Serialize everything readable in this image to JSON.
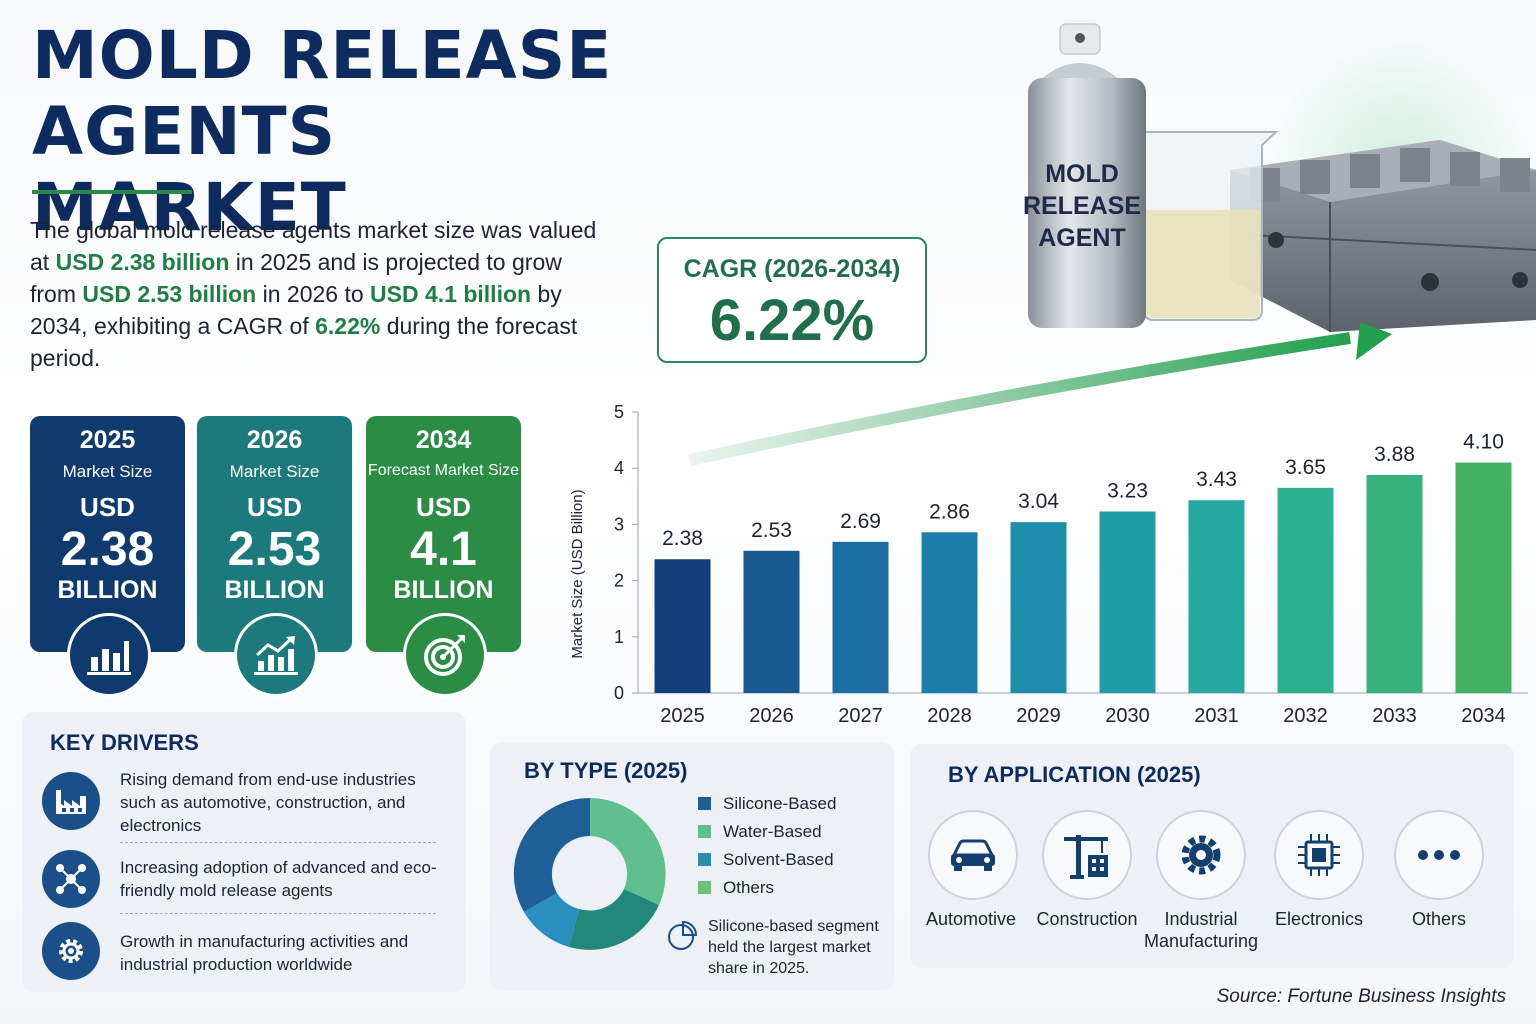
{
  "title_lines": [
    "MOLD RELEASE AGENTS",
    "MARKET"
  ],
  "intro": {
    "p1": "The global mold release agents market size was valued at ",
    "h1": "USD 2.38 billion",
    "p2": " in 2025 and is projected to grow from ",
    "h2": "USD 2.53 billion",
    "p3": " in 2026 to ",
    "h3": "USD 4.1 billion",
    "p4": " by 2034, exhibiting a CAGR of ",
    "h4": "6.22%",
    "p5": " during the forecast period."
  },
  "cards": [
    {
      "year": "2025",
      "label": "Market Size",
      "currency": "USD",
      "value": "2.38",
      "unit": "BILLION",
      "color": "#0f3a6e",
      "icon": "bar-chart-icon"
    },
    {
      "year": "2026",
      "label": "Market Size",
      "currency": "USD",
      "value": "2.53",
      "unit": "BILLION",
      "color": "#1d7a7c",
      "icon": "growth-chart-icon"
    },
    {
      "year": "2034",
      "label": "Forecast Market Size",
      "currency": "USD",
      "value": "4.1",
      "unit": "BILLION",
      "color": "#2b8c45",
      "icon": "target-icon"
    }
  ],
  "cagr": {
    "label": "CAGR (2026-2034)",
    "value": "6.22%"
  },
  "product_image": {
    "can_label_lines": [
      "MOLD",
      "RELEASE",
      "AGENT"
    ]
  },
  "chart_data": {
    "type": "bar",
    "categories": [
      "2025",
      "2026",
      "2027",
      "2028",
      "2029",
      "2030",
      "2031",
      "2032",
      "2033",
      "2034"
    ],
    "values": [
      2.38,
      2.53,
      2.69,
      2.86,
      3.04,
      3.23,
      3.43,
      3.65,
      3.88,
      4.1
    ],
    "value_labels": [
      "2.38",
      "2.53",
      "2.69",
      "2.86",
      "3.04",
      "3.23",
      "3.43",
      "3.65",
      "3.88",
      "4.10"
    ],
    "ylabel": "Market Size (USD Billion)",
    "ylim": [
      0,
      5
    ],
    "yticks": [
      "0",
      "1",
      "2",
      "3",
      "4",
      "5"
    ],
    "colors": [
      "#13407a",
      "#1a5a93",
      "#1b6ea2",
      "#1b7eaa",
      "#1c8eac",
      "#1f9ca8",
      "#25a8a0",
      "#2db08f",
      "#36b37c",
      "#44b061"
    ],
    "grid": false,
    "trend_arrow": true
  },
  "drivers": {
    "heading": "KEY DRIVERS",
    "items": [
      {
        "text": "Rising demand from end-use industries such as automotive, construction, and electronics",
        "icon": "factory-icon"
      },
      {
        "text": "Increasing adoption of advanced and eco-friendly mold release agents",
        "icon": "molecule-icon"
      },
      {
        "text": "Growth in manufacturing activities and industrial production worldwide",
        "icon": "gear-icon"
      }
    ]
  },
  "by_type": {
    "heading": "BY TYPE (2025)",
    "legend": [
      {
        "name": "Silicone-Based",
        "color": "#1f5f98"
      },
      {
        "name": "Water-Based",
        "color": "#5fbf8e"
      },
      {
        "name": "Solvent-Based",
        "color": "#2a8fa5"
      },
      {
        "name": "Others",
        "color": "#6cc07a"
      }
    ],
    "note": "Silicone-based segment held the largest market share in 2025."
  },
  "by_application": {
    "heading": "BY APPLICATION (2025)",
    "items": [
      {
        "label": "Automotive",
        "icon": "car-icon"
      },
      {
        "label": "Construction",
        "icon": "crane-icon"
      },
      {
        "label": "Industrial Manufacturing",
        "icon": "gear-icon"
      },
      {
        "label": "Electronics",
        "icon": "chip-icon"
      },
      {
        "label": "Others",
        "icon": "more-dots-icon"
      }
    ]
  },
  "source": "Source: Fortune Business Insights"
}
